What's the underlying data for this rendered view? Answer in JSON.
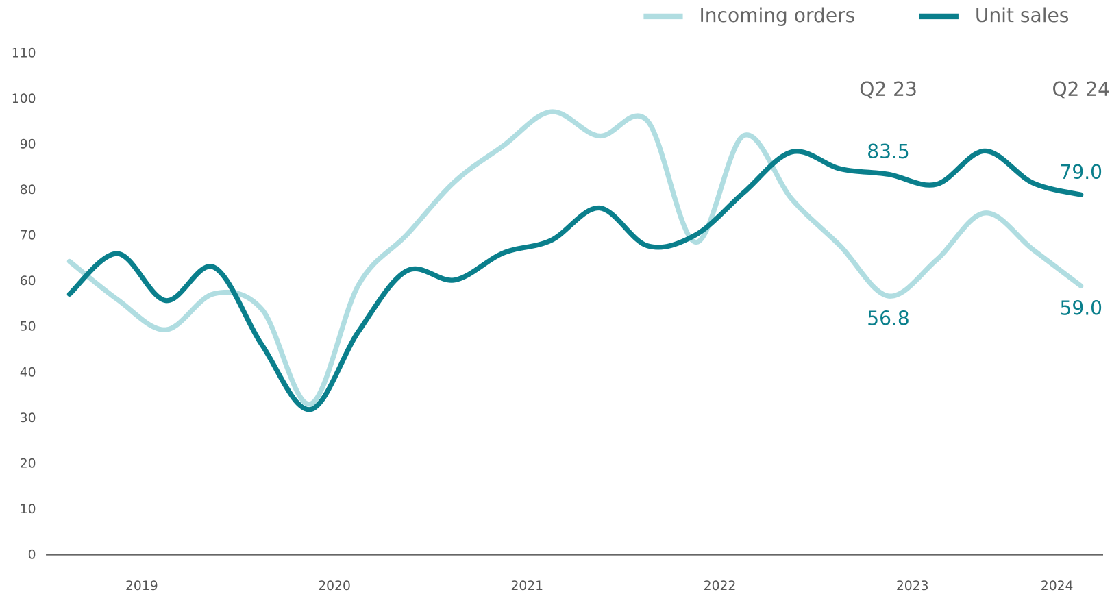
{
  "chart_data": {
    "type": "line",
    "x_labels": [
      "2019",
      "2020",
      "2021",
      "2022",
      "2023",
      "2024"
    ],
    "ylim": [
      0,
      110
    ],
    "yticks": [
      0,
      10,
      20,
      30,
      40,
      50,
      60,
      70,
      80,
      90,
      100,
      110
    ],
    "legend": "top-right",
    "series": [
      {
        "name": "Incoming orders",
        "color": "#b0dde1",
        "values": [
          64.4,
          56,
          49.4,
          57.3,
          53.8,
          33.1,
          59.2,
          70.2,
          81.9,
          89.7,
          97.2,
          91.9,
          95.2,
          68.6,
          92,
          78,
          67.8,
          56.8,
          64.7,
          75,
          67,
          59.0
        ],
        "value_labels": [
          null,
          null,
          null,
          null,
          null,
          null,
          null,
          null,
          null,
          null,
          null,
          null,
          null,
          null,
          null,
          null,
          null,
          "56.8",
          null,
          null,
          null,
          "59.0"
        ]
      },
      {
        "name": "Unit sales",
        "color": "#0a7f8c",
        "values": [
          57.2,
          66.1,
          55.8,
          63.1,
          46,
          31.9,
          49,
          62.3,
          60.3,
          66.2,
          69,
          76.1,
          67.8,
          70.2,
          79.5,
          88.4,
          84.7,
          83.5,
          81.3,
          88.6,
          81.6,
          79.0
        ],
        "value_labels": [
          null,
          null,
          null,
          null,
          null,
          null,
          null,
          null,
          null,
          null,
          null,
          null,
          null,
          null,
          null,
          null,
          null,
          "83.5",
          null,
          null,
          null,
          "79.0"
        ]
      }
    ],
    "annotations": [
      {
        "text": "Q2 23",
        "x": 17
      },
      {
        "text": "Q2 24",
        "x": 21
      }
    ]
  }
}
